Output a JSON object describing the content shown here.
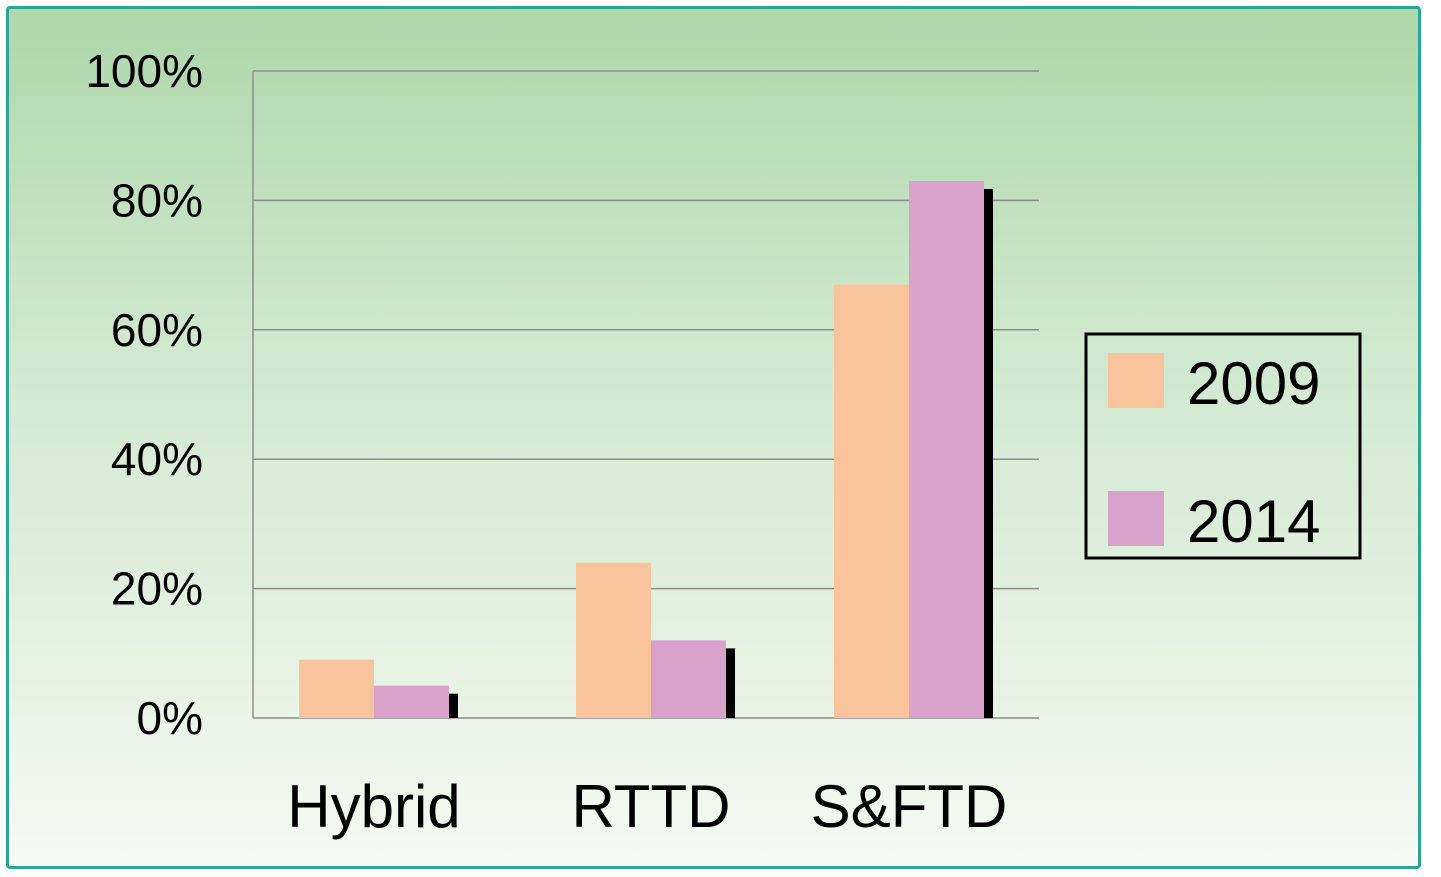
{
  "chart_data": {
    "type": "bar",
    "categories": [
      "Hybrid",
      "RTTD",
      "S&FTD"
    ],
    "series": [
      {
        "name": "2009",
        "values": [
          9,
          24,
          67
        ],
        "color": "#f9c49b"
      },
      {
        "name": "2014",
        "values": [
          5,
          12,
          83
        ],
        "color": "#d8a2ca"
      }
    ],
    "yticks": [
      "0%",
      "20%",
      "40%",
      "60%",
      "80%",
      "100%"
    ],
    "ylim": [
      0,
      100
    ],
    "grid": true,
    "legend_position": "right",
    "shadow_color": "#000000",
    "gridline_color": "#8c8c8c"
  }
}
